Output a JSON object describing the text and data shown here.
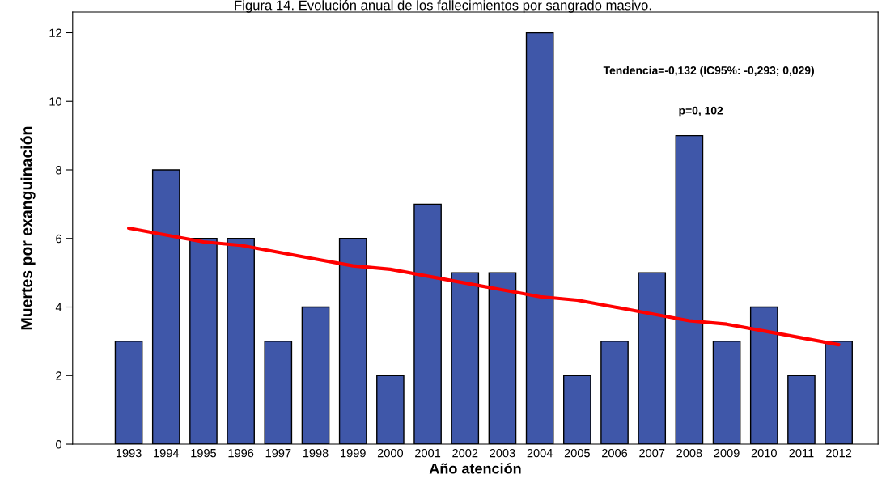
{
  "chart_data": {
    "type": "bar",
    "title": "Figura 14. Evolución anual de los fallecimientos por sangrado masivo.",
    "xlabel": "Año atención",
    "ylabel": "Muertes por exanguinación",
    "categories": [
      "1993",
      "1994",
      "1995",
      "1996",
      "1997",
      "1998",
      "1999",
      "2000",
      "2001",
      "2002",
      "2003",
      "2004",
      "2005",
      "2006",
      "2007",
      "2008",
      "2009",
      "2010",
      "2011",
      "2012"
    ],
    "series": [
      {
        "color": "#3f57a9",
        "values": [
          3,
          8,
          6,
          6,
          3,
          4,
          6,
          2,
          7,
          5,
          5,
          12,
          2,
          3,
          5,
          9,
          3,
          4,
          2,
          3
        ]
      },
      {
        "type": "line",
        "color": "#ff0000",
        "values": [
          6.3,
          6.1,
          5.9,
          5.8,
          5.6,
          5.4,
          5.2,
          5.1,
          4.9,
          4.7,
          4.5,
          4.3,
          4.2,
          4.0,
          3.8,
          3.6,
          3.5,
          3.3,
          3.1,
          2.9
        ]
      }
    ],
    "ylim": [
      0,
      12.6
    ],
    "yticks": [
      0,
      2,
      4,
      6,
      8,
      10,
      12
    ],
    "grid": false,
    "legend": false,
    "annotations": [
      "Tendencia=-0,132 (IC95%: -0,293; 0,029)",
      "p=0, 102"
    ]
  }
}
